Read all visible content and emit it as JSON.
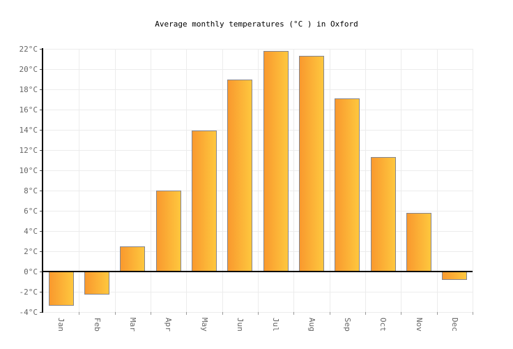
{
  "title": "Average monthly temperatures (°C ) in Oxford",
  "colors": {
    "background": "#ffffff",
    "bar_gradient_left": "#F9992E",
    "bar_gradient_right": "#FEC73E",
    "bar_border": "#85858E",
    "axis": "#000000",
    "gridline": "#ececec",
    "tick_label": "#666666",
    "title_text": "#000000"
  },
  "chart_data": {
    "type": "bar",
    "title": "Average monthly temperatures (°C ) in Oxford",
    "categories": [
      "Jan",
      "Feb",
      "Mar",
      "Apr",
      "May",
      "Jun",
      "Jul",
      "Aug",
      "Sep",
      "Oct",
      "Nov",
      "Dec"
    ],
    "values": [
      -3.4,
      -2.3,
      2.5,
      8.0,
      13.9,
      19.0,
      21.8,
      21.3,
      17.1,
      11.3,
      5.8,
      -0.8
    ],
    "unit": "°C",
    "xlabel": "",
    "ylabel": "",
    "ylim": [
      -4,
      22
    ],
    "ytick_step": 2,
    "ytick_labels": [
      "22°C",
      "20°C",
      "18°C",
      "16°C",
      "14°C",
      "12°C",
      "10°C",
      "8°C",
      "6°C",
      "4°C",
      "2°C",
      "0°C",
      "-2°C",
      "-4°C"
    ],
    "grid": true,
    "legend": null,
    "x_tick_label_rotation_deg": 90
  }
}
